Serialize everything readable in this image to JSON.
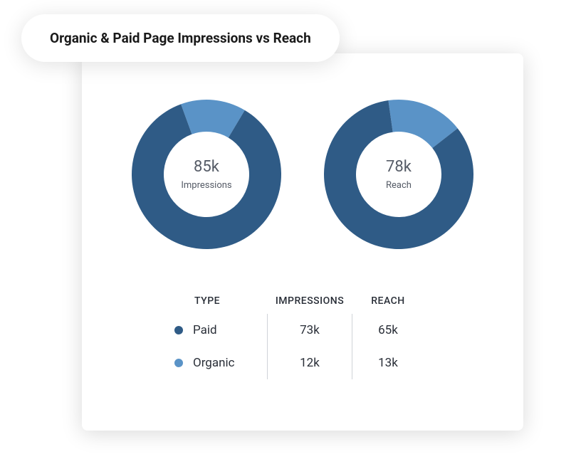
{
  "title": "Organic & Paid Page Impressions vs Reach",
  "colors": {
    "paid": "#2f5b86",
    "organic": "#5a93c7",
    "card_bg": "#ffffff",
    "text_dark": "#2a2f38",
    "text_mid": "#555b66",
    "divider": "#cfd3d8"
  },
  "donuts": [
    {
      "key": "impressions",
      "center_value": "85k",
      "center_label": "Impressions",
      "total": 85,
      "slices": [
        {
          "type": "paid",
          "value": 73,
          "color": "#2f5b86"
        },
        {
          "type": "organic",
          "value": 12,
          "color": "#5a93c7"
        }
      ],
      "start_angle_deg": -20,
      "inner_radius": 60,
      "outer_radius": 105
    },
    {
      "key": "reach",
      "center_value": "78k",
      "center_label": "Reach",
      "total": 78,
      "slices": [
        {
          "type": "paid",
          "value": 65,
          "color": "#2f5b86"
        },
        {
          "type": "organic",
          "value": 13,
          "color": "#5a93c7"
        }
      ],
      "start_angle_deg": -8,
      "inner_radius": 60,
      "outer_radius": 105
    }
  ],
  "table": {
    "headers": {
      "type": "TYPE",
      "impressions": "IMPRESSIONS",
      "reach": "REACH"
    },
    "rows": [
      {
        "swatch": "#2f5b86",
        "type_label": "Paid",
        "impressions": "73k",
        "reach": "65k"
      },
      {
        "swatch": "#5a93c7",
        "type_label": "Organic",
        "impressions": "12k",
        "reach": "13k"
      }
    ]
  }
}
